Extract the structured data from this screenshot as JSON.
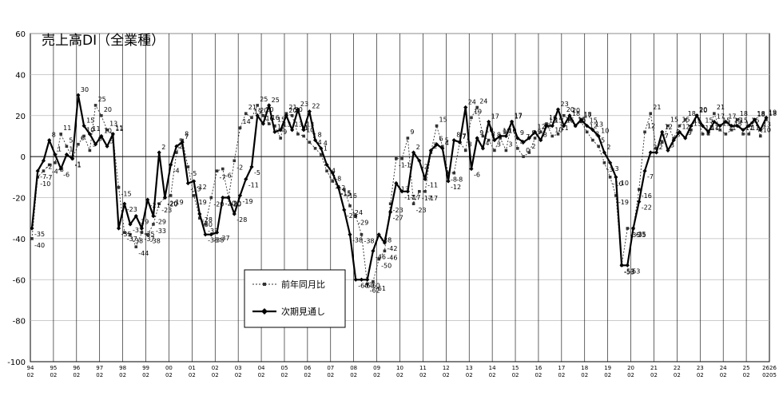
{
  "chart_data": {
    "type": "line",
    "title": "売上高DI（全業種）",
    "ylim": [
      -100,
      60
    ],
    "y_ticks": [
      60,
      40,
      20,
      0,
      -20,
      -40,
      -60,
      -80,
      -100
    ],
    "grid": {
      "horizontal": true,
      "vertical": true
    },
    "year_labels": [
      "94",
      "95",
      "96",
      "97",
      "98",
      "99",
      "00",
      "01",
      "02",
      "03",
      "04",
      "05",
      "06",
      "07",
      "08",
      "09",
      "10",
      "11",
      "12",
      "13",
      "14",
      "15",
      "16",
      "17",
      "18",
      "19",
      "20",
      "21",
      "22",
      "23",
      "24",
      "25",
      "2626"
    ],
    "month_labels": [
      "02",
      "02",
      "02",
      "02",
      "02",
      "02",
      "02",
      "02",
      "02",
      "02",
      "02",
      "02",
      "02",
      "02",
      "02",
      "02",
      "02",
      "02",
      "02",
      "02",
      "02",
      "02",
      "02",
      "02",
      "02",
      "02",
      "02",
      "02",
      "02",
      "02",
      "02",
      "02",
      "0205"
    ],
    "legend": {
      "position": "lower-middle"
    },
    "series": [
      {
        "name": "前年同月比",
        "style": "dotted-square",
        "values": [
          -40,
          -10,
          -7,
          -4,
          -3,
          11,
          5,
          -1,
          6,
          10,
          3,
          25,
          20,
          13,
          11,
          -15,
          -37,
          -38,
          -44,
          -37,
          -38,
          -33,
          -23,
          -20,
          -19,
          2,
          8,
          -5,
          -19,
          -30,
          -33,
          -20,
          -7,
          -6,
          -20,
          -2,
          14,
          21,
          19,
          25,
          20,
          16,
          15,
          9,
          21,
          20,
          11,
          10,
          7,
          4,
          1,
          -7,
          -12,
          -15,
          -16,
          -24,
          -29,
          -38,
          -62,
          -61,
          -50,
          -46,
          -23,
          -1,
          -1,
          9,
          -23,
          -17,
          -17,
          2,
          15,
          5,
          -8,
          -8,
          7,
          3,
          19,
          24,
          10,
          8,
          3,
          9,
          3,
          17,
          4,
          0,
          2,
          9,
          12,
          16,
          10,
          11,
          20,
          18,
          15,
          17,
          12,
          8,
          5,
          -3,
          -10,
          -19,
          -53,
          -35,
          -35,
          -16,
          12,
          21,
          4,
          7,
          15,
          9,
          15,
          18,
          13,
          20,
          11,
          11,
          21,
          13,
          11,
          13,
          18,
          11,
          11,
          18,
          10,
          18
        ]
      },
      {
        "name": "次期見通し",
        "style": "solid-diamond",
        "values": [
          -35,
          -7,
          -2,
          8,
          1,
          -6,
          1,
          -1,
          30,
          15,
          11,
          6,
          10,
          5,
          11,
          -35,
          -23,
          -33,
          -29,
          -35,
          -21,
          -29,
          2,
          -20,
          -4,
          5,
          7,
          -13,
          -12,
          -28,
          -38,
          -38,
          -37,
          -20,
          -20,
          -28,
          -19,
          -11,
          -5,
          20,
          16,
          25,
          12,
          13,
          20,
          13,
          23,
          13,
          22,
          8,
          4,
          -4,
          -8,
          -15,
          -26,
          -38,
          -60,
          -60,
          -60,
          -46,
          -38,
          -42,
          -27,
          -13,
          -17,
          -17,
          2,
          -2,
          -11,
          3,
          6,
          4,
          -12,
          8,
          7,
          24,
          -6,
          9,
          4,
          17,
          8,
          10,
          10,
          17,
          9,
          7,
          9,
          12,
          8,
          15,
          15,
          23,
          15,
          20,
          15,
          18,
          15,
          13,
          10,
          2,
          -3,
          -10,
          -53,
          -53,
          -35,
          -22,
          -7,
          2,
          2,
          12,
          3,
          8,
          12,
          9,
          15,
          20,
          15,
          12,
          17,
          15,
          17,
          15,
          15,
          13,
          15,
          18,
          13,
          19
        ]
      }
    ]
  }
}
